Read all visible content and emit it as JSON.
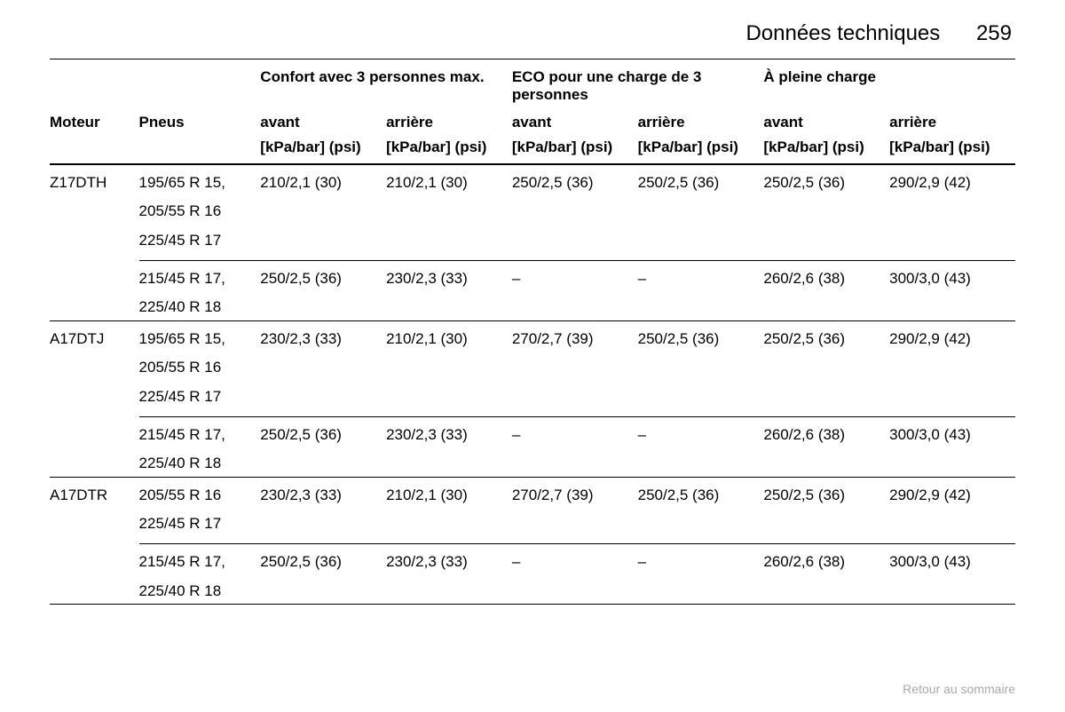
{
  "header": {
    "title": "Données techniques",
    "page_number": "259"
  },
  "table": {
    "group_headers": {
      "comfort": "Confort avec 3 personnes max.",
      "eco": "ECO pour une charge de 3 personnes",
      "full": "À pleine charge"
    },
    "col_headers": {
      "motor": "Moteur",
      "tyre": "Pneus",
      "front": "avant",
      "rear": "arrière"
    },
    "unit": "[kPa/bar] (psi)",
    "groups": [
      {
        "motor": "Z17DTH",
        "blocks": [
          {
            "tyres": [
              "195/65 R 15,",
              "205/55 R 16",
              "225/45 R 17"
            ],
            "vals": [
              "210/2,1 (30)",
              "210/2,1 (30)",
              "250/2,5 (36)",
              "250/2,5 (36)",
              "250/2,5 (36)",
              "290/2,9 (42)"
            ]
          },
          {
            "tyres": [
              "215/45 R 17,",
              "225/40 R 18"
            ],
            "vals": [
              "250/2,5 (36)",
              "230/2,3 (33)",
              "–",
              "–",
              "260/2,6 (38)",
              "300/3,0 (43)"
            ]
          }
        ]
      },
      {
        "motor": "A17DTJ",
        "blocks": [
          {
            "tyres": [
              "195/65 R 15,",
              "205/55 R 16",
              "225/45 R 17"
            ],
            "vals": [
              "230/2,3 (33)",
              "210/2,1 (30)",
              "270/2,7 (39)",
              "250/2,5 (36)",
              "250/2,5 (36)",
              "290/2,9 (42)"
            ]
          },
          {
            "tyres": [
              "215/45 R 17,",
              "225/40 R 18"
            ],
            "vals": [
              "250/2,5 (36)",
              "230/2,3 (33)",
              "–",
              "–",
              "260/2,6 (38)",
              "300/3,0 (43)"
            ]
          }
        ]
      },
      {
        "motor": "A17DTR",
        "blocks": [
          {
            "tyres": [
              "205/55 R 16",
              "225/45 R 17"
            ],
            "vals": [
              "230/2,3 (33)",
              "210/2,1 (30)",
              "270/2,7 (39)",
              "250/2,5 (36)",
              "250/2,5 (36)",
              "290/2,9 (42)"
            ]
          },
          {
            "tyres": [
              "215/45 R 17,",
              "225/40 R 18"
            ],
            "vals": [
              "250/2,5 (36)",
              "230/2,3 (33)",
              "–",
              "–",
              "260/2,6 (38)",
              "300/3,0 (43)"
            ]
          }
        ]
      }
    ]
  },
  "footer": {
    "link": "Retour au sommaire"
  }
}
